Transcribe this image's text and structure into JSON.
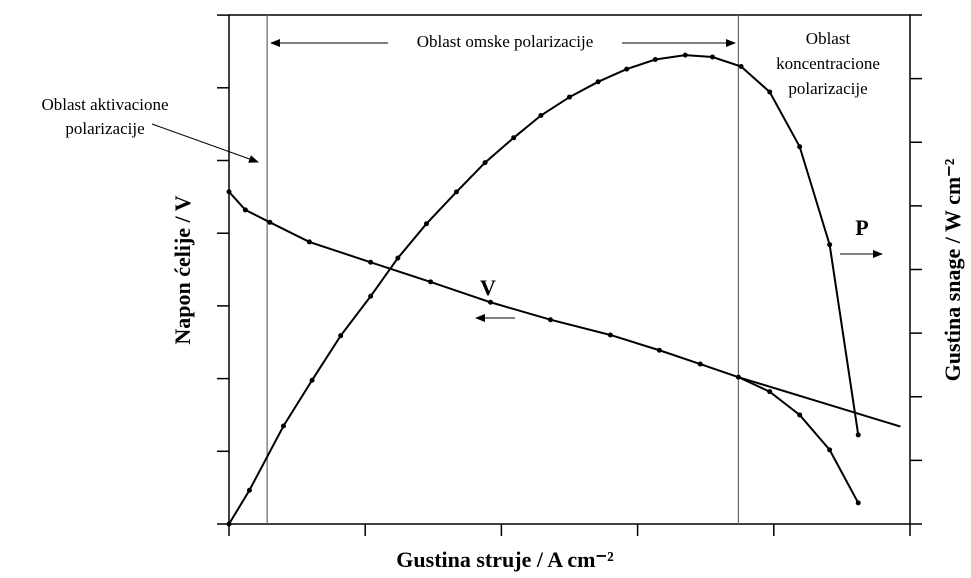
{
  "chart_data": {
    "type": "line",
    "x_label": "Gustina struje / A cm⁻²",
    "y_label": "Napon ćelije / V",
    "y2_label": "Gustina snage / W cm⁻²",
    "xlim": [
      0,
      5
    ],
    "xticks": [
      0,
      1,
      2,
      3,
      4,
      5
    ],
    "ylim": [
      0,
      7
    ],
    "yticks": [
      0,
      1,
      2,
      3,
      4,
      5,
      6,
      7
    ],
    "y2lim": [
      0,
      8
    ],
    "y2ticks": [
      0,
      1,
      2,
      3,
      4,
      5,
      6,
      7,
      8
    ],
    "boundaries": [
      0.28,
      3.74
    ],
    "annotations": {
      "ohmic": "Oblast omske polarizacije",
      "activation": [
        "Oblast aktivacione",
        "polarizacije"
      ],
      "concentration": [
        "Oblast",
        "koncentracione",
        "polarizacije"
      ]
    },
    "series": [
      {
        "name": "V",
        "color": "#000",
        "x": [
          0,
          0.12,
          0.3,
          0.59,
          1.04,
          1.48,
          1.92,
          2.36,
          2.8,
          3.16,
          3.46,
          3.74,
          3.97,
          4.19,
          4.41,
          4.62
        ],
        "values": [
          4.57,
          4.32,
          4.15,
          3.88,
          3.6,
          3.33,
          3.05,
          2.81,
          2.6,
          2.39,
          2.2,
          2.02,
          1.82,
          1.5,
          1.02,
          0.29
        ]
      },
      {
        "name": "P",
        "color": "#000",
        "axis": "y2",
        "x": [
          0,
          0.15,
          0.4,
          0.61,
          0.82,
          1.04,
          1.24,
          1.45,
          1.67,
          1.88,
          2.09,
          2.29,
          2.5,
          2.71,
          2.92,
          3.13,
          3.35,
          3.55,
          3.76,
          3.97,
          4.19,
          4.41,
          4.62
        ],
        "values": [
          0,
          0.53,
          1.54,
          2.26,
          2.96,
          3.58,
          4.18,
          4.72,
          5.22,
          5.68,
          6.07,
          6.42,
          6.71,
          6.95,
          7.15,
          7.3,
          7.37,
          7.34,
          7.19,
          6.79,
          5.93,
          4.39,
          1.4
        ]
      },
      {
        "color": "#000",
        "x": [
          3.74,
          4.93
        ],
        "values": [
          2.02,
          1.34
        ]
      }
    ]
  }
}
